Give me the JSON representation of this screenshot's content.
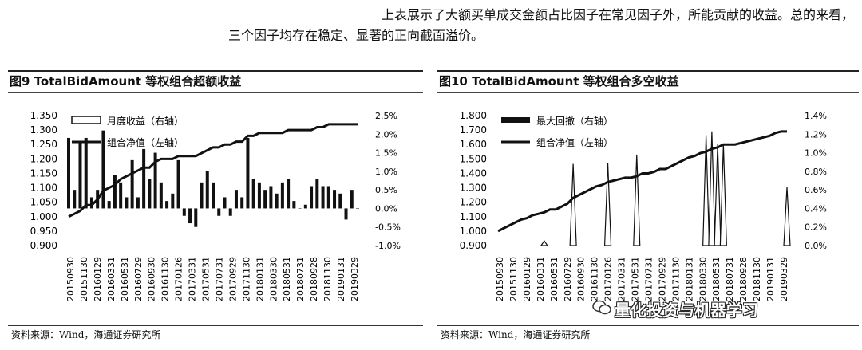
{
  "intro": {
    "line1": "上表展示了大额买单成交金额占比因子在常见因子外，所能贡献的收益。总的来看，",
    "line2": "三个因子均存在稳定、显著的正向截面溢价。"
  },
  "watermark": {
    "text": "量化投资与机器学习",
    "icon": "wechat-icon"
  },
  "chart_data": [
    {
      "type": "bar+line",
      "title": "图9  TotalBidAmount 等权组合超额收益",
      "source": "资料来源：Wind，海通证券研究所",
      "x_tick_labels": [
        "20150930",
        "20151130",
        "20160129",
        "20160331",
        "20160531",
        "20160729",
        "20160930",
        "20161130",
        "20170126",
        "20170331",
        "20170531",
        "20170731",
        "20170929",
        "20171130",
        "20180131",
        "20180330",
        "20180531",
        "20180731",
        "20180928",
        "20181130",
        "20190131",
        "20190329"
      ],
      "y_left": {
        "ticks": [
          "0.900",
          "0.950",
          "1.000",
          "1.050",
          "1.100",
          "1.150",
          "1.200",
          "1.250",
          "1.300",
          "1.350"
        ],
        "range": [
          0.9,
          1.35
        ]
      },
      "y_right": {
        "ticks": [
          "-1.0%",
          "-0.5%",
          "0.0%",
          "0.5%",
          "1.0%",
          "1.5%",
          "2.0%",
          "2.5%"
        ],
        "range": [
          -1.0,
          2.5
        ]
      },
      "series": [
        {
          "name": "月度收益（右轴）",
          "kind": "bar",
          "axis": "right",
          "values": [
            1.9,
            0.5,
            1.8,
            1.9,
            0.3,
            0.5,
            2.1,
            0.2,
            0.9,
            0.7,
            0.3,
            1.3,
            0.3,
            1.6,
            0.8,
            1.5,
            0.7,
            0.2,
            0.4,
            1.3,
            -0.2,
            -0.4,
            -0.5,
            0.7,
            1.0,
            0.7,
            -0.2,
            0.3,
            -0.2,
            0.5,
            0.3,
            1.9,
            0.8,
            0.7,
            0.5,
            0.6,
            0.4,
            0.7,
            0.8,
            0.2,
            0.0,
            0.1,
            0.6,
            0.8,
            0.6,
            0.6,
            0.5,
            0.4,
            -0.3,
            0.5,
            0.0
          ]
        },
        {
          "name": "组合净值（左轴）",
          "kind": "line",
          "axis": "left",
          "values": [
            1.0,
            1.01,
            1.02,
            1.04,
            1.04,
            1.06,
            1.09,
            1.1,
            1.11,
            1.13,
            1.14,
            1.15,
            1.16,
            1.17,
            1.17,
            1.19,
            1.2,
            1.2,
            1.2,
            1.21,
            1.21,
            1.21,
            1.21,
            1.22,
            1.23,
            1.24,
            1.24,
            1.25,
            1.25,
            1.26,
            1.26,
            1.28,
            1.28,
            1.29,
            1.29,
            1.29,
            1.29,
            1.29,
            1.3,
            1.3,
            1.3,
            1.3,
            1.3,
            1.31,
            1.31,
            1.32,
            1.32,
            1.32,
            1.32,
            1.32,
            1.32
          ]
        }
      ]
    },
    {
      "type": "area+line",
      "title": "图10 TotalBidAmount 等权组合多空收益",
      "source": "资料来源：Wind，海通证券研究所",
      "x_tick_labels": [
        "20150930",
        "20151130",
        "20160129",
        "20160331",
        "20160531",
        "20160729",
        "20160930",
        "20161130",
        "20170126",
        "20170331",
        "20170531",
        "20170731",
        "20170929",
        "20171130",
        "20180131",
        "20180330",
        "20180531",
        "20180731",
        "20180928",
        "20181130",
        "20190131",
        "20190329"
      ],
      "y_left": {
        "ticks": [
          "0.900",
          "1.000",
          "1.100",
          "1.200",
          "1.300",
          "1.400",
          "1.500",
          "1.600",
          "1.700",
          "1.800"
        ],
        "range": [
          0.9,
          1.8
        ]
      },
      "y_right": {
        "ticks": [
          "0.0%",
          "0.2%",
          "0.4%",
          "0.6%",
          "0.8%",
          "1.0%",
          "1.2%",
          "1.4%"
        ],
        "range": [
          0.0,
          1.4
        ]
      },
      "series": [
        {
          "name": "最大回撤（右轴）",
          "kind": "area",
          "axis": "right",
          "values": [
            0,
            0,
            0,
            0,
            0,
            0,
            0,
            0,
            0.05,
            0,
            0,
            0,
            0,
            0.88,
            0,
            0,
            0,
            0,
            0,
            0.89,
            0,
            0,
            0,
            0,
            0.98,
            0,
            0,
            0,
            0,
            0,
            0,
            0,
            0,
            0,
            0,
            0,
            1.19,
            1.23,
            1.09,
            1.09,
            0,
            0,
            0,
            0,
            0,
            0,
            0,
            0,
            0,
            0,
            0.63
          ]
        },
        {
          "name": "组合净值（左轴）",
          "kind": "line",
          "axis": "left",
          "values": [
            1.0,
            1.02,
            1.04,
            1.06,
            1.08,
            1.09,
            1.11,
            1.12,
            1.13,
            1.15,
            1.15,
            1.17,
            1.19,
            1.23,
            1.25,
            1.27,
            1.29,
            1.31,
            1.32,
            1.34,
            1.35,
            1.36,
            1.37,
            1.37,
            1.38,
            1.4,
            1.4,
            1.41,
            1.43,
            1.43,
            1.45,
            1.47,
            1.49,
            1.51,
            1.52,
            1.54,
            1.55,
            1.57,
            1.58,
            1.6,
            1.6,
            1.6,
            1.61,
            1.62,
            1.63,
            1.64,
            1.65,
            1.66,
            1.68,
            1.69,
            1.69
          ]
        }
      ]
    }
  ]
}
